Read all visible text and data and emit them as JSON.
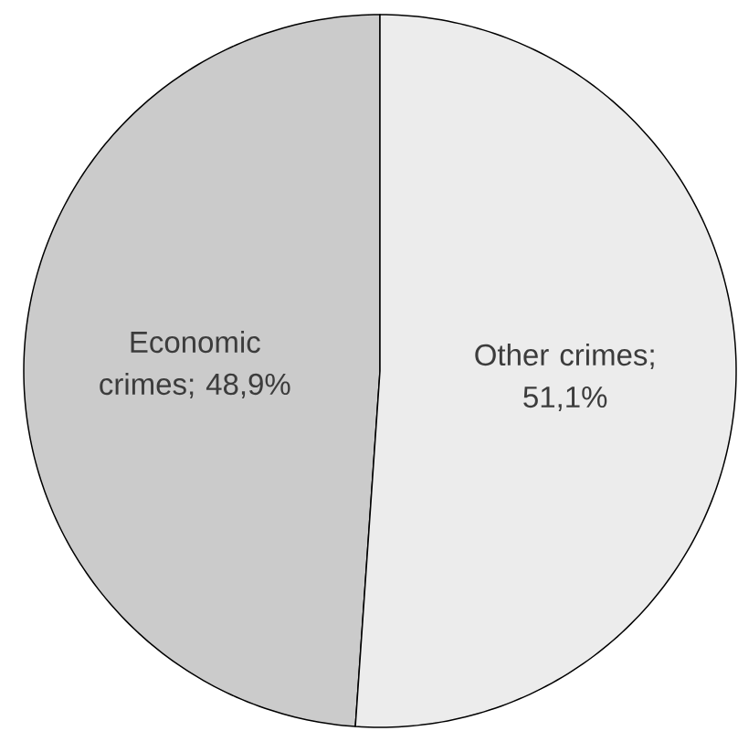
{
  "chart_data": {
    "type": "pie",
    "categories": [
      "Economic crimes; 48,9%",
      "Other crimes; 51,1%"
    ],
    "values": [
      48.9,
      51.1
    ],
    "colors": [
      "#cbcbcb",
      "#ececec"
    ]
  }
}
